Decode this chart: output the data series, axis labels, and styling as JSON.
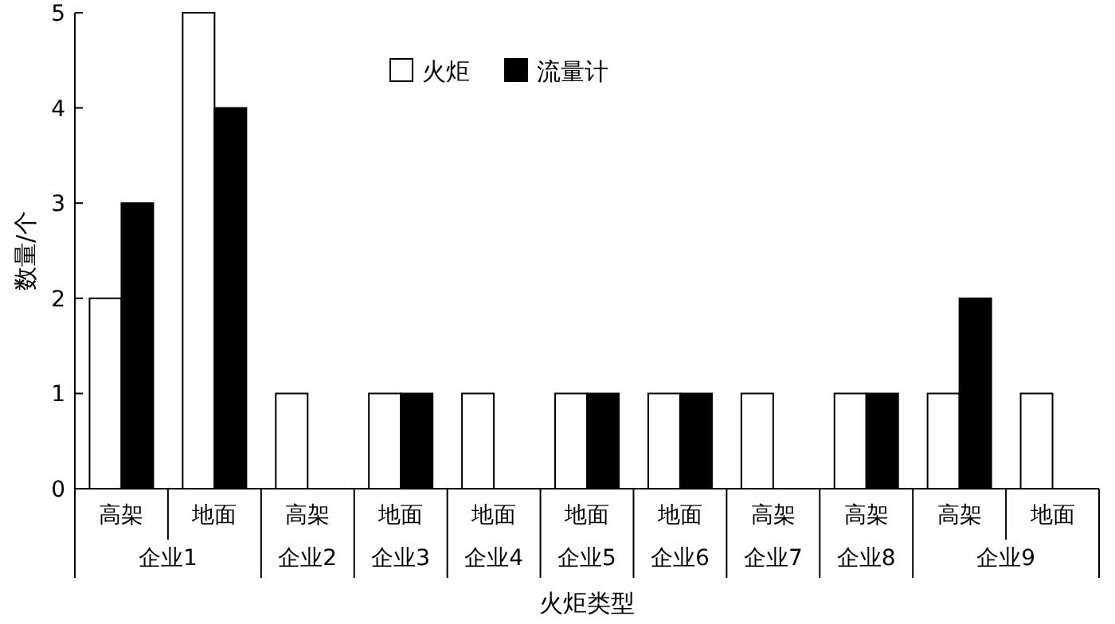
{
  "chart_data": {
    "type": "bar",
    "xlabel": "火炬类型",
    "ylabel": "数量/个",
    "categories": [
      "高架",
      "地面",
      "高架",
      "地面",
      "地面",
      "地面",
      "地面",
      "高架",
      "高架",
      "高架",
      "地面"
    ],
    "series": [
      {
        "name": "火炬",
        "color": "#ffffff",
        "values": [
          2,
          5,
          1,
          1,
          1,
          1,
          1,
          1,
          1,
          1,
          1
        ]
      },
      {
        "name": "流量计",
        "color": "#000000",
        "values": [
          3,
          4,
          null,
          1,
          null,
          1,
          1,
          null,
          1,
          2,
          null
        ]
      }
    ],
    "annotations": [
      "企业1",
      "企业2",
      "企业3",
      "企业4",
      "企业5",
      "企业6",
      "企业7",
      "企业8",
      "企业9"
    ],
    "ylim": [
      0,
      5
    ],
    "yticks": [
      0,
      1,
      2,
      3,
      4,
      5
    ],
    "legend": "top",
    "grid": false
  }
}
